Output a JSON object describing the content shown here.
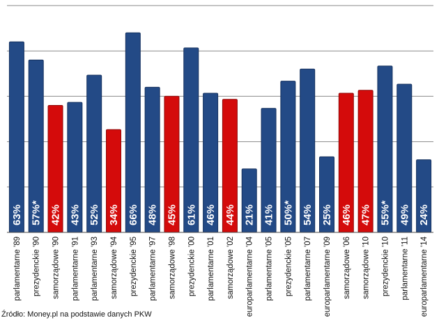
{
  "chart_data": {
    "type": "bar",
    "title": "",
    "xlabel": "",
    "ylabel": "",
    "ylim": [
      0,
      75
    ],
    "grid": true,
    "categories": [
      "parlamentarne '89",
      "prezydenckie '90",
      "samorządowe '90",
      "parlamentarne '91",
      "parlamentarne '93",
      "samorządowe '94",
      "prezydenckie '95",
      "parlamentarne '97",
      "samorządowe '98",
      "prezydenckie '00",
      "parlamentarne '01",
      "samorządowe '02",
      "europarlamentarne '04",
      "parlamentarne '05",
      "prezydenckie '05",
      "parlamentarne '07",
      "europarlamentarne '09",
      "samorządowe '06",
      "samorządowe '10",
      "prezydenckie '10",
      "parlamentarne '11",
      "europarlamentarne '14"
    ],
    "values": [
      63,
      57,
      42,
      43,
      52,
      34,
      66,
      48,
      45,
      61,
      46,
      44,
      21,
      41,
      50,
      54,
      25,
      46,
      47,
      55,
      49,
      24
    ],
    "labels": [
      "63%",
      "57%*",
      "42%",
      "43%",
      "52%",
      "34%",
      "66%",
      "48%",
      "45%",
      "61%",
      "46%",
      "44%",
      "21%",
      "41%",
      "50%*",
      "54%",
      "25%",
      "46%",
      "47%",
      "55%*",
      "49%",
      "24%"
    ],
    "kinds": [
      "blue",
      "blue",
      "red",
      "blue",
      "blue",
      "red",
      "blue",
      "blue",
      "red",
      "blue",
      "blue",
      "red",
      "blue",
      "blue",
      "blue",
      "blue",
      "blue",
      "red",
      "red",
      "blue",
      "blue",
      "blue"
    ],
    "colors": {
      "blue_fill": "#234a86",
      "blue_edge": "#14305e",
      "red_fill": "#d40b0b",
      "red_edge": "#8e0707",
      "grid": "#8a8a8a",
      "axis": "#444444"
    }
  },
  "source_text": "Źródło: Money.pl na podstawie danych PKW"
}
